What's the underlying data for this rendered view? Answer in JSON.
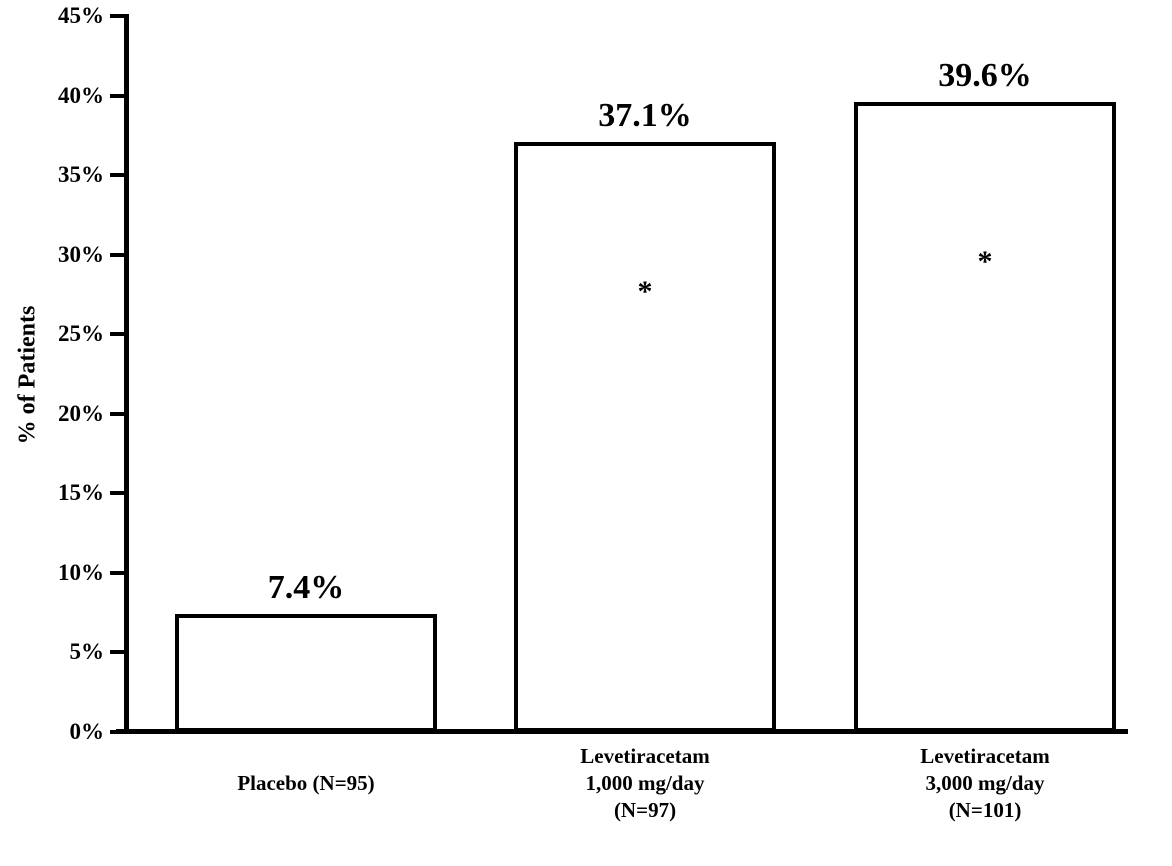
{
  "chart_data": {
    "type": "bar",
    "title": "",
    "xlabel": "",
    "ylabel": "% of Patients",
    "ylim": [
      0,
      45
    ],
    "ytick_step": 5,
    "ytick_labels": [
      "0%",
      "5%",
      "10%",
      "15%",
      "20%",
      "25%",
      "30%",
      "35%",
      "40%",
      "45%"
    ],
    "grid": false,
    "legend": "none",
    "bar_fill": "#ffffff",
    "bar_border": "#000000",
    "categories": [
      "Placebo (N=95)",
      "Levetiracetam 1,000 mg/day (N=97)",
      "Levetiracetam 3,000 mg/day (N=101)"
    ],
    "category_lines": [
      [
        "Placebo (N=95)"
      ],
      [
        "Levetiracetam",
        "1,000 mg/day",
        "(N=97)"
      ],
      [
        "Levetiracetam",
        "3,000 mg/day",
        "(N=101)"
      ]
    ],
    "values": [
      7.4,
      37.1,
      39.6
    ],
    "data_labels": [
      "7.4%",
      "37.1%",
      "39.6%"
    ],
    "significance_markers": [
      "",
      "*",
      "*"
    ]
  }
}
